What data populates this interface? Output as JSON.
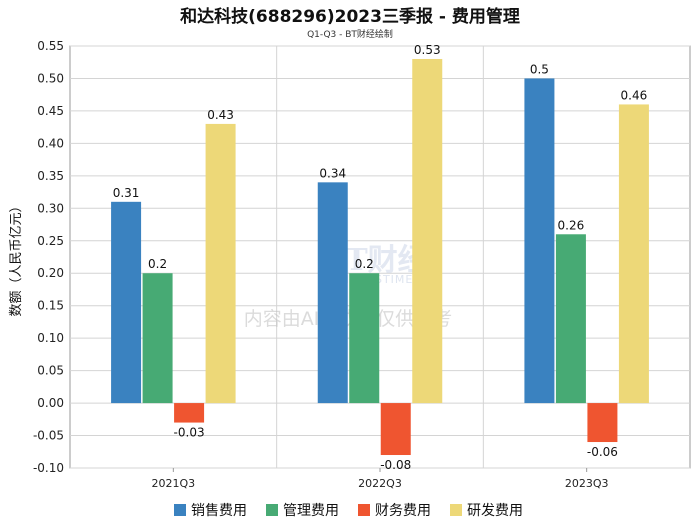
{
  "chart_data": {
    "type": "bar",
    "title": "和达科技(688296)2023三季报 - 费用管理",
    "subtitle": "Q1-Q3 - BT财经绘制",
    "xlabel": "",
    "ylabel": "数额（人民币亿元）",
    "ylim": [
      -0.1,
      0.55
    ],
    "yticks": [
      "0.55",
      "0.50",
      "0.45",
      "0.40",
      "0.35",
      "0.30",
      "0.25",
      "0.20",
      "0.15",
      "0.10",
      "0.05",
      "0.00",
      "-0.05",
      "-0.10"
    ],
    "ytick_values": [
      0.55,
      0.5,
      0.45,
      0.4,
      0.35,
      0.3,
      0.25,
      0.2,
      0.15,
      0.1,
      0.05,
      0.0,
      -0.05,
      -0.1
    ],
    "grid": true,
    "legend_position": "bottom",
    "categories": [
      "2021Q3",
      "2022Q3",
      "2023Q3"
    ],
    "series": [
      {
        "name": "销售费用",
        "color": "#3a82c0",
        "values": [
          0.31,
          0.34,
          0.5
        ],
        "labels": [
          "0.31",
          "0.34",
          "0.5"
        ]
      },
      {
        "name": "管理费用",
        "color": "#47aa74",
        "values": [
          0.2,
          0.2,
          0.26
        ],
        "labels": [
          "0.2",
          "0.2",
          "0.26"
        ]
      },
      {
        "name": "财务费用",
        "color": "#ef5530",
        "values": [
          -0.03,
          -0.08,
          -0.06
        ],
        "labels": [
          "-0.03",
          "-0.08",
          "-0.06"
        ]
      },
      {
        "name": "研发费用",
        "color": "#edd878",
        "values": [
          0.43,
          0.53,
          0.46
        ],
        "labels": [
          "0.43",
          "0.53",
          "0.46"
        ]
      }
    ]
  },
  "watermark": {
    "logo": "BT财经",
    "logo_sub": "BUSINESSTIMES",
    "notice": "内容由AI生成，仅供参考"
  }
}
